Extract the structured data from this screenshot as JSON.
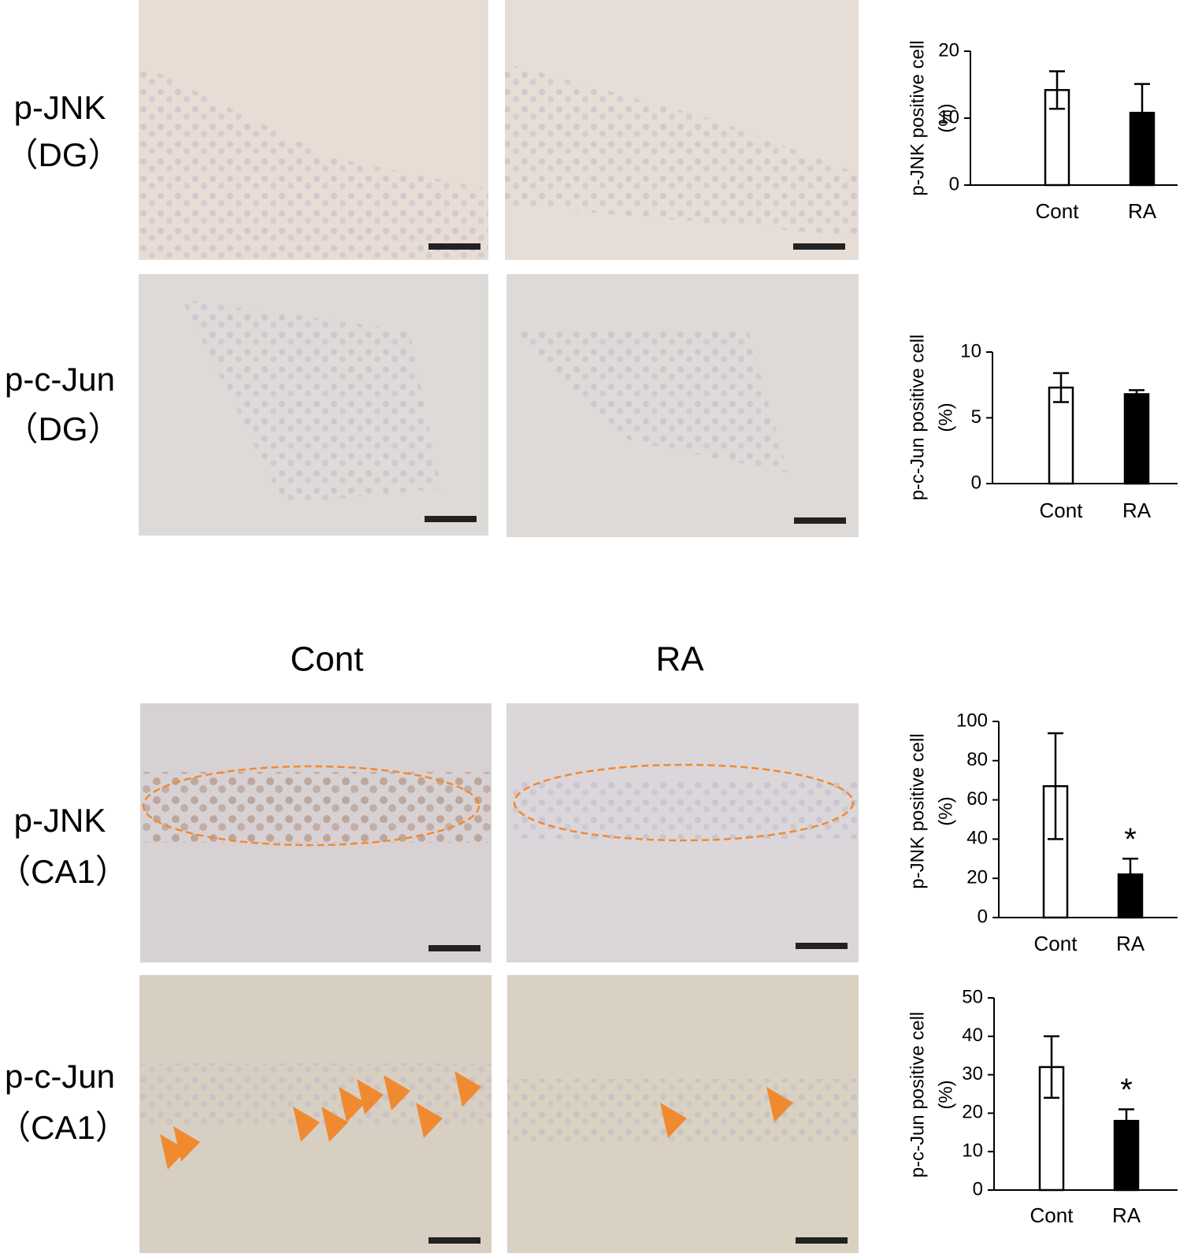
{
  "row_labels": [
    {
      "marker": "p-JNK",
      "region": "（DG）"
    },
    {
      "marker": "p-c-Jun",
      "region": "（DG）"
    },
    {
      "marker": "p-JNK",
      "region": "（CA1）"
    },
    {
      "marker": "p-c-Jun",
      "region": "（CA1）"
    }
  ],
  "column_headers": [
    "Cont",
    "RA"
  ],
  "chart_data": [
    {
      "type": "bar",
      "ylabel": [
        "p-JNK positive cell",
        "(%)"
      ],
      "categories": [
        "Cont",
        "RA"
      ],
      "values": [
        14.2,
        10.8
      ],
      "errors": [
        2.8,
        4.3
      ],
      "colors": [
        "#ffffff",
        "#000000"
      ],
      "significance": [
        null,
        null
      ],
      "ylim": [
        0,
        20
      ],
      "yticks": [
        0,
        10,
        20
      ]
    },
    {
      "type": "bar",
      "ylabel": [
        "p-c-Jun positive cell",
        "(%)"
      ],
      "categories": [
        "Cont",
        "RA"
      ],
      "values": [
        7.3,
        6.8
      ],
      "errors": [
        1.1,
        0.3
      ],
      "colors": [
        "#ffffff",
        "#000000"
      ],
      "significance": [
        null,
        null
      ],
      "ylim": [
        0,
        10
      ],
      "yticks": [
        0,
        5,
        10
      ]
    },
    {
      "type": "bar",
      "ylabel": [
        "p-JNK positive cell",
        "(%)"
      ],
      "categories": [
        "Cont",
        "RA"
      ],
      "values": [
        67,
        22
      ],
      "errors": [
        27,
        8
      ],
      "colors": [
        "#ffffff",
        "#000000"
      ],
      "significance": [
        null,
        "*"
      ],
      "ylim": [
        0,
        100
      ],
      "yticks": [
        0,
        20,
        40,
        60,
        80,
        100
      ]
    },
    {
      "type": "bar",
      "ylabel": [
        "p-c-Jun positive cell",
        "(%)"
      ],
      "categories": [
        "Cont",
        "RA"
      ],
      "values": [
        32,
        18
      ],
      "errors": [
        8,
        3
      ],
      "colors": [
        "#ffffff",
        "#000000"
      ],
      "significance": [
        null,
        "*"
      ],
      "ylim": [
        0,
        50
      ],
      "yticks": [
        0,
        10,
        20,
        30,
        40,
        50
      ]
    }
  ]
}
